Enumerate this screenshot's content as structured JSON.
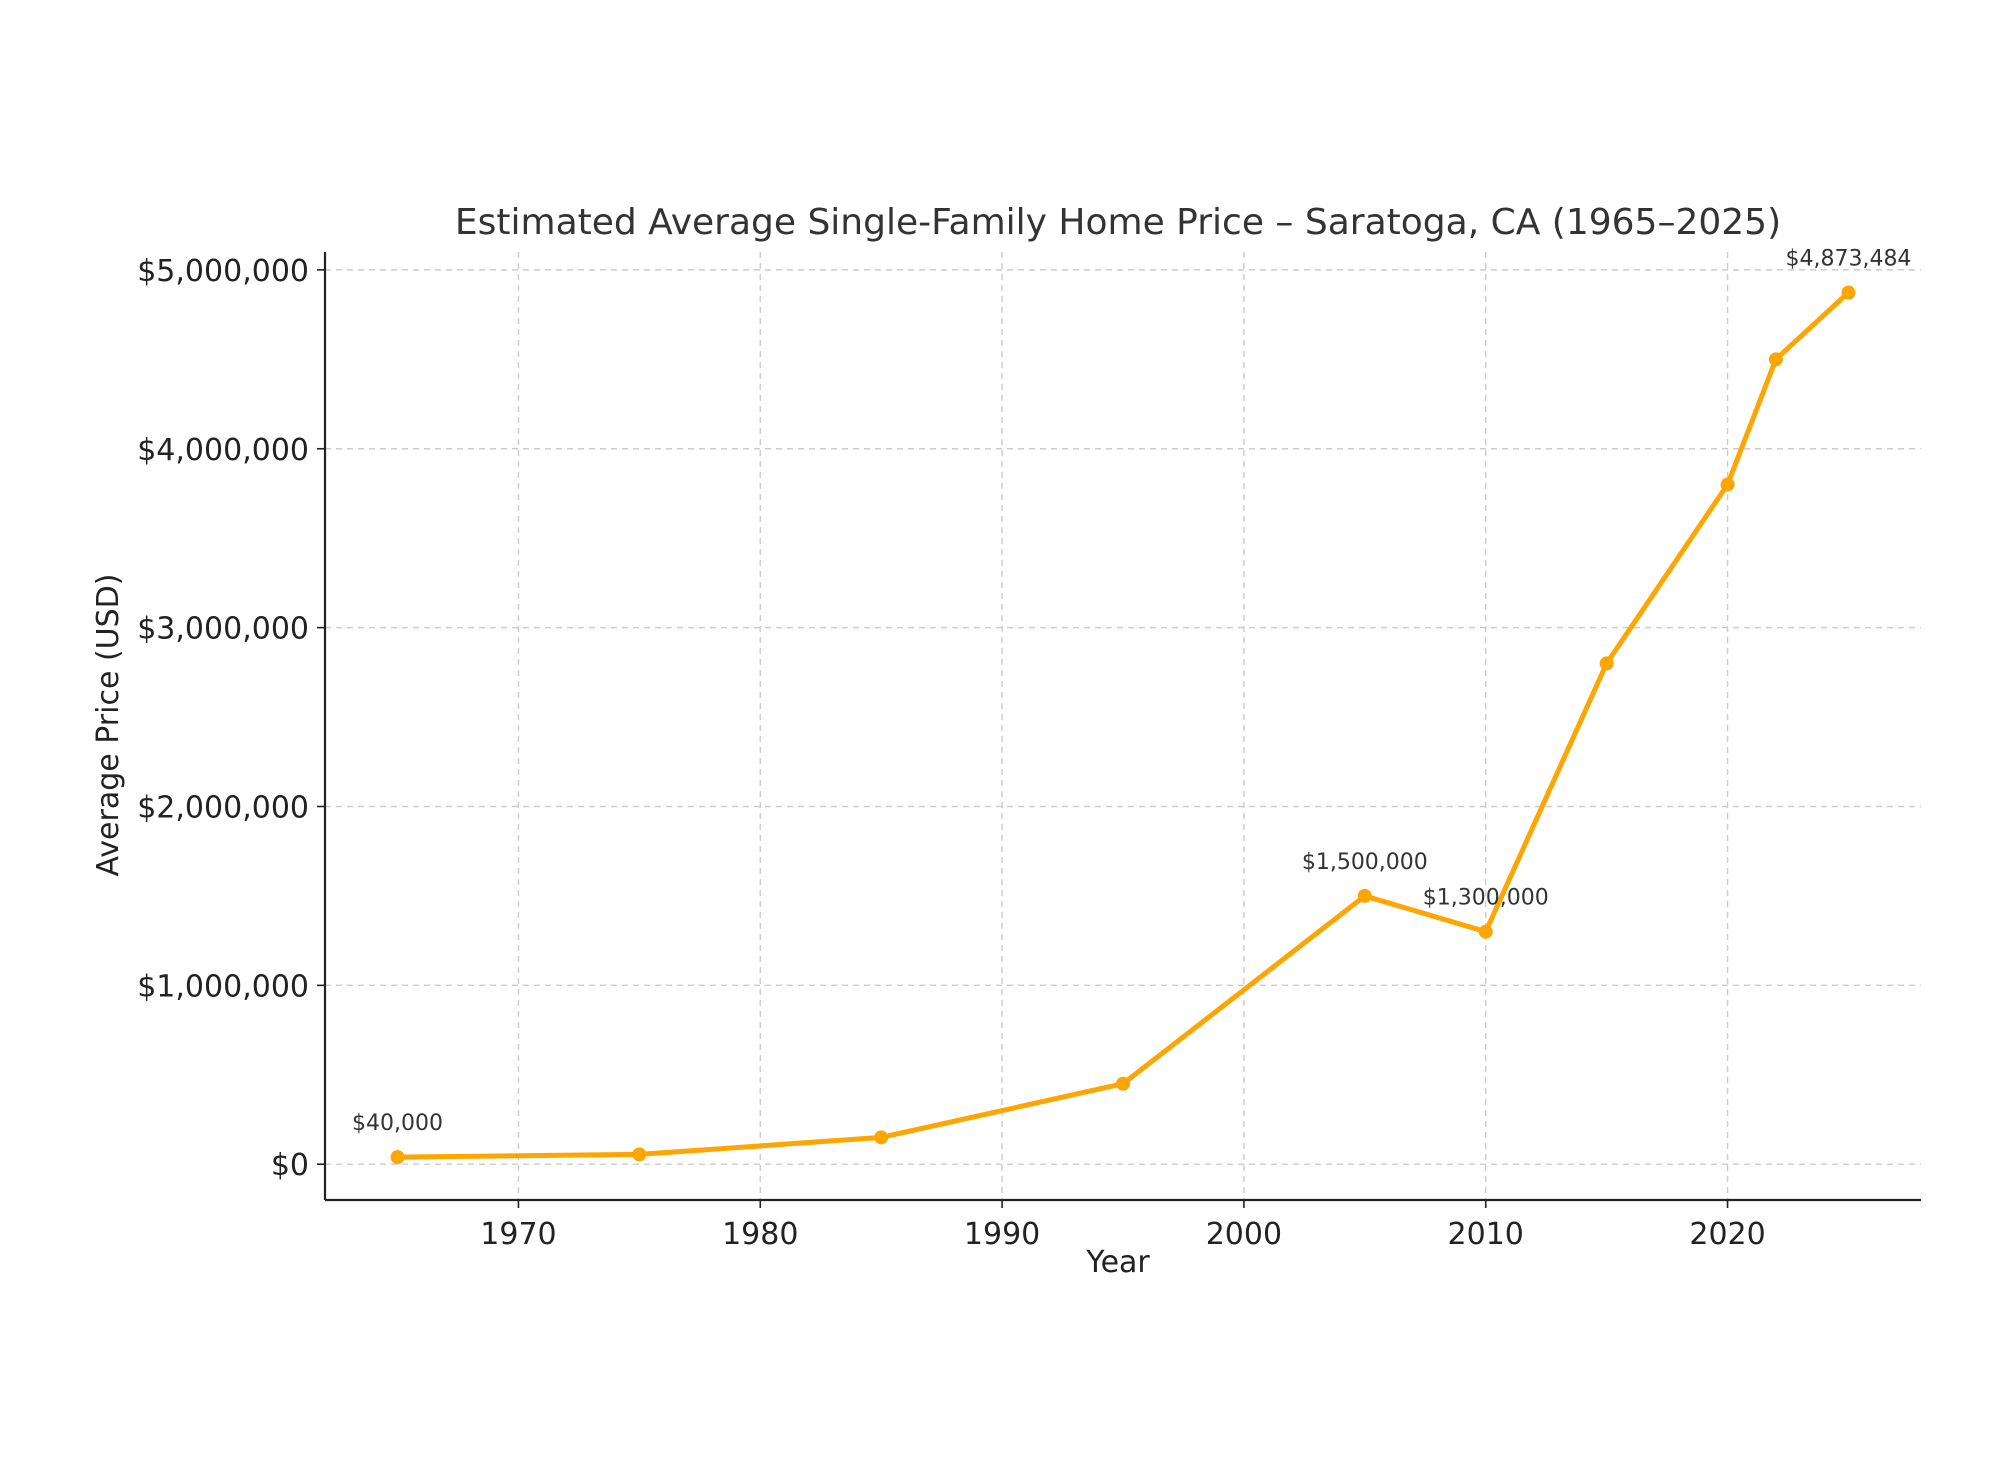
{
  "chart_data": {
    "type": "line",
    "title": "Estimated Average Single-Family Home Price – Saratoga, CA (1965–2025)",
    "xlabel": "Year",
    "ylabel": "Average Price (USD)",
    "xlim": [
      1962,
      2028
    ],
    "ylim": [
      -200000,
      5100000
    ],
    "x_ticks": [
      1970,
      1980,
      1990,
      2000,
      2010,
      2020
    ],
    "x_tick_labels": [
      "1970",
      "1980",
      "1990",
      "2000",
      "2010",
      "2020"
    ],
    "y_ticks": [
      0,
      1000000,
      2000000,
      3000000,
      4000000,
      5000000
    ],
    "y_tick_labels": [
      "$0",
      "$1,000,000",
      "$2,000,000",
      "$3,000,000",
      "$4,000,000",
      "$5,000,000"
    ],
    "grid": true,
    "series": [
      {
        "name": "Average Price",
        "color": "#FFA500",
        "x": [
          1965,
          1975,
          1985,
          1995,
          2005,
          2010,
          2015,
          2020,
          2022,
          2025
        ],
        "values": [
          40000,
          55000,
          150000,
          450000,
          1500000,
          1300000,
          2800000,
          3800000,
          4500000,
          4873484
        ]
      }
    ],
    "annotations": [
      {
        "x": 1965,
        "y": 40000,
        "text": "$40,000"
      },
      {
        "x": 2005,
        "y": 1500000,
        "text": "$1,500,000"
      },
      {
        "x": 2010,
        "y": 1300000,
        "text": "$1,300,000"
      },
      {
        "x": 2025,
        "y": 4873484,
        "text": "$4,873,484"
      }
    ]
  }
}
